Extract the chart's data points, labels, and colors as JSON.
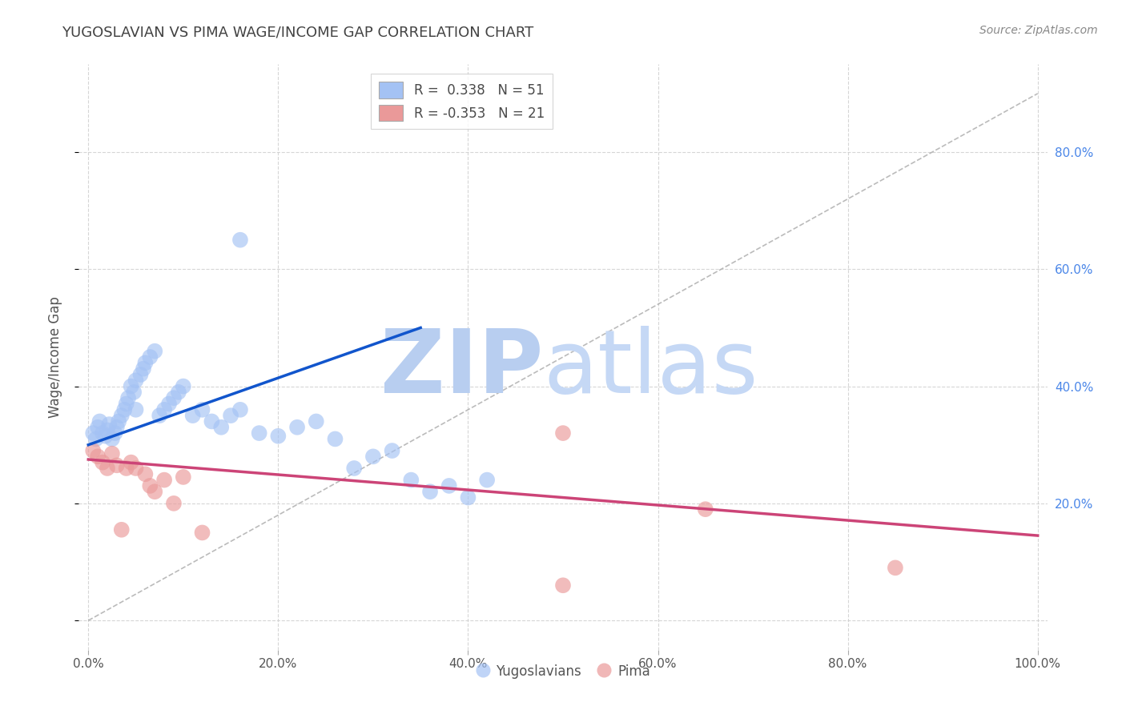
{
  "title": "YUGOSLAVIAN VS PIMA WAGE/INCOME GAP CORRELATION CHART",
  "source_text": "Source: ZipAtlas.com",
  "ylabel": "Wage/Income Gap",
  "xlabel": "",
  "xlim": [
    -0.01,
    1.01
  ],
  "ylim": [
    -0.05,
    0.95
  ],
  "yticks": [
    0.0,
    0.2,
    0.4,
    0.6,
    0.8
  ],
  "ytick_labels_right": [
    "",
    "20.0%",
    "40.0%",
    "60.0%",
    "80.0%"
  ],
  "xticks": [
    0.0,
    0.2,
    0.4,
    0.6,
    0.8,
    1.0
  ],
  "xtick_labels": [
    "0.0%",
    "20.0%",
    "40.0%",
    "60.0%",
    "80.0%",
    "100.0%"
  ],
  "legend_r1": "R =  0.338",
  "legend_n1": "N = 51",
  "legend_r2": "R = -0.353",
  "legend_n2": "N = 21",
  "blue_color": "#a4c2f4",
  "pink_color": "#ea9999",
  "blue_line_color": "#1155cc",
  "pink_line_color": "#cc4477",
  "title_color": "#434343",
  "watermark_color": "#c9daf8",
  "background_color": "#ffffff",
  "grid_color": "#cccccc",
  "right_tick_color": "#4a86e8",
  "blue_scatter_x": [
    0.005,
    0.008,
    0.01,
    0.012,
    0.015,
    0.018,
    0.02,
    0.022,
    0.025,
    0.028,
    0.03,
    0.032,
    0.035,
    0.038,
    0.04,
    0.042,
    0.045,
    0.048,
    0.05,
    0.05,
    0.055,
    0.058,
    0.06,
    0.065,
    0.07,
    0.075,
    0.08,
    0.085,
    0.09,
    0.095,
    0.1,
    0.11,
    0.12,
    0.13,
    0.14,
    0.15,
    0.16,
    0.18,
    0.2,
    0.22,
    0.24,
    0.26,
    0.28,
    0.3,
    0.32,
    0.34,
    0.36,
    0.38,
    0.4,
    0.42,
    0.16
  ],
  "blue_scatter_y": [
    0.32,
    0.31,
    0.33,
    0.34,
    0.32,
    0.315,
    0.325,
    0.335,
    0.31,
    0.32,
    0.33,
    0.34,
    0.35,
    0.36,
    0.37,
    0.38,
    0.4,
    0.39,
    0.41,
    0.36,
    0.42,
    0.43,
    0.44,
    0.45,
    0.46,
    0.35,
    0.36,
    0.37,
    0.38,
    0.39,
    0.4,
    0.35,
    0.36,
    0.34,
    0.33,
    0.35,
    0.36,
    0.32,
    0.315,
    0.33,
    0.34,
    0.31,
    0.26,
    0.28,
    0.29,
    0.24,
    0.22,
    0.23,
    0.21,
    0.24,
    0.65
  ],
  "pink_scatter_x": [
    0.005,
    0.01,
    0.015,
    0.02,
    0.025,
    0.03,
    0.035,
    0.04,
    0.045,
    0.05,
    0.06,
    0.065,
    0.07,
    0.08,
    0.09,
    0.1,
    0.12,
    0.5,
    0.65,
    0.85,
    0.5
  ],
  "pink_scatter_y": [
    0.29,
    0.28,
    0.27,
    0.26,
    0.285,
    0.265,
    0.155,
    0.26,
    0.27,
    0.26,
    0.25,
    0.23,
    0.22,
    0.24,
    0.2,
    0.245,
    0.15,
    0.32,
    0.19,
    0.09,
    0.06
  ],
  "diag_line_x": [
    0.0,
    1.0
  ],
  "diag_line_y": [
    0.0,
    0.9
  ]
}
